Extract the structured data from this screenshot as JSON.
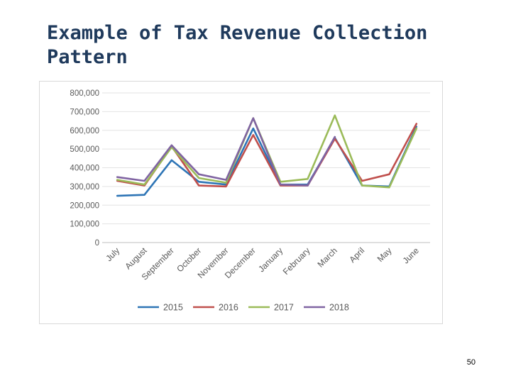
{
  "slide": {
    "title": "Example of Tax Revenue Collection Pattern",
    "page_number": "50"
  },
  "chart_data": {
    "type": "line",
    "title": "",
    "xlabel": "",
    "ylabel": "",
    "ylim": [
      0,
      800000
    ],
    "yticks": [
      0,
      100000,
      200000,
      300000,
      400000,
      500000,
      600000,
      700000,
      800000
    ],
    "ytick_labels": [
      "0",
      "100,000",
      "200,000",
      "300,000",
      "400,000",
      "500,000",
      "600,000",
      "700,000",
      "800,000"
    ],
    "grid": true,
    "legend_position": "bottom",
    "categories": [
      "July",
      "August",
      "September",
      "October",
      "November",
      "December",
      "January",
      "February",
      "March",
      "April",
      "May",
      "June"
    ],
    "series": [
      {
        "name": "2015",
        "color": "#2e75b6",
        "values": [
          250000,
          255000,
          440000,
          325000,
          310000,
          610000,
          310000,
          310000,
          560000,
          305000,
          300000,
          620000
        ]
      },
      {
        "name": "2016",
        "color": "#c0504d",
        "values": [
          330000,
          305000,
          515000,
          305000,
          300000,
          575000,
          305000,
          305000,
          555000,
          330000,
          365000,
          635000
        ]
      },
      {
        "name": "2017",
        "color": "#9bbb59",
        "values": [
          335000,
          310000,
          510000,
          345000,
          320000,
          665000,
          325000,
          340000,
          680000,
          305000,
          295000,
          610000
        ]
      },
      {
        "name": "2018",
        "color": "#8064a2",
        "values": [
          350000,
          330000,
          520000,
          365000,
          335000,
          665000,
          310000,
          305000,
          565000,
          null,
          null,
          null
        ]
      }
    ]
  }
}
